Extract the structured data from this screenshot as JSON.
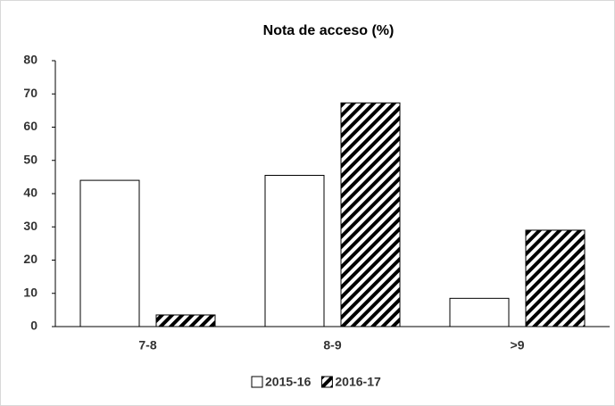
{
  "chart_data": {
    "type": "bar",
    "title": "Nota de acceso (%)",
    "categories": [
      "7-8",
      "8-9",
      ">9"
    ],
    "series": [
      {
        "name": "2015-16",
        "color": "#ffffff",
        "values": [
          44,
          45.5,
          8.5
        ]
      },
      {
        "name": "2016-17",
        "color": "#000000",
        "hatch": true,
        "values": [
          3.5,
          67.3,
          29
        ]
      }
    ],
    "ylim": [
      0,
      80
    ],
    "yticks": [
      0,
      10,
      20,
      30,
      40,
      50,
      60,
      70,
      80
    ],
    "grid": false,
    "legend": "bottom"
  }
}
